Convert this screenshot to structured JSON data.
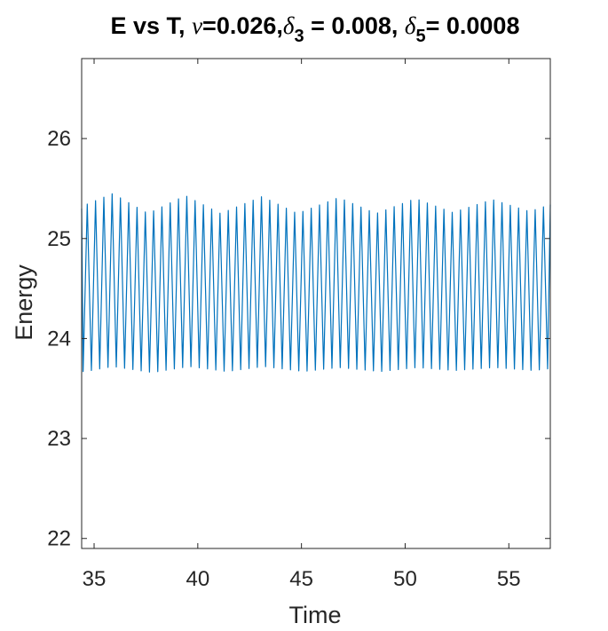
{
  "chart_data": {
    "type": "line",
    "title": {
      "prefix": "E vs T, ",
      "nu_symbol": "ν",
      "nu_text": "=0.026,",
      "delta3_symbol": "δ",
      "delta3_sub": "3",
      "delta3_text": " = 0.008, ",
      "delta5_symbol": "δ",
      "delta5_sub": "5",
      "delta5_text": "= 0.0008"
    },
    "xlabel": "Time",
    "ylabel": "Energy",
    "xlim": [
      34.4,
      57.0
    ],
    "ylim": [
      21.9,
      26.8
    ],
    "xticks": [
      35,
      40,
      45,
      50,
      55
    ],
    "yticks": [
      22,
      23,
      24,
      25,
      26
    ],
    "grid": false,
    "series": [
      {
        "color": "#0072bd",
        "period": 0.4,
        "x_start": 34.4,
        "x_end": 57.0,
        "first_value": 25.3,
        "peak_envelope": {
          "t": [
            34.5,
            35.9,
            37.6,
            39.4,
            41.1,
            43.1,
            44.8,
            46.8,
            48.6,
            50.5,
            52.3,
            54.2,
            56.0,
            57.0
          ],
          "v": [
            25.33,
            25.45,
            25.25,
            25.43,
            25.25,
            25.42,
            25.25,
            25.41,
            25.25,
            25.4,
            25.26,
            25.39,
            25.27,
            25.34
          ]
        },
        "trough_envelope": {
          "t": [
            34.6,
            35.9,
            37.8,
            39.6,
            41.4,
            43.2,
            45.1,
            46.8,
            48.8,
            50.6,
            52.4,
            54.3,
            56.2,
            57.0
          ],
          "v": [
            23.67,
            23.72,
            23.66,
            23.72,
            23.67,
            23.72,
            23.67,
            23.71,
            23.67,
            23.71,
            23.68,
            23.71,
            23.68,
            23.7
          ]
        }
      }
    ]
  }
}
